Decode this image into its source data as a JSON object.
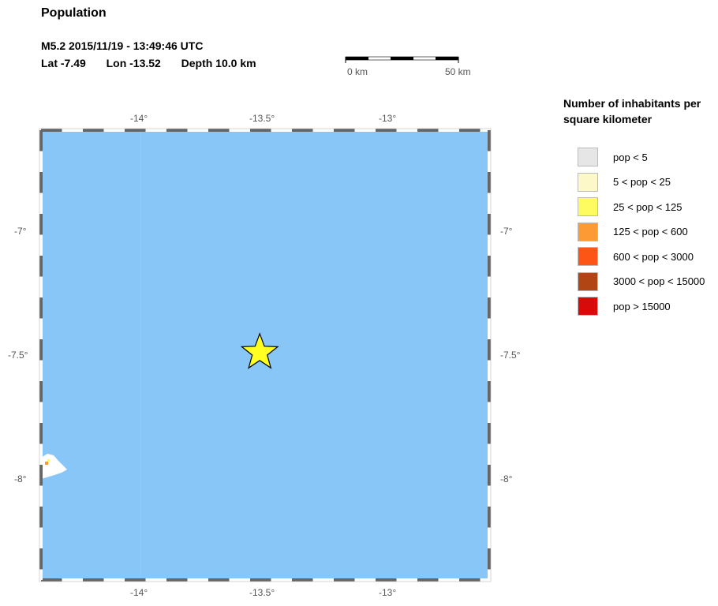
{
  "title": "Population",
  "event": {
    "line1": "M5.2  2015/11/19 - 13:49:46 UTC",
    "lat_label": "Lat -7.49",
    "lon_label": "Lon -13.52",
    "depth_label": "Depth  10.0 km"
  },
  "scale_bar": {
    "start_label": "0 km",
    "end_label": "50 km"
  },
  "map": {
    "lon_ticks": [
      "-14°",
      "-13.5°",
      "-13°"
    ],
    "lat_ticks": [
      "-7°",
      "-7.5°",
      "-8°"
    ],
    "water_color": "#87c6f7",
    "epicenter": {
      "lat": -7.49,
      "lon": -13.52,
      "marker": "star-icon",
      "color": "#ffff22"
    }
  },
  "legend": {
    "title": "Number of inhabitants per square kilometer",
    "items": [
      {
        "label": "pop < 5",
        "color": "#e6e6e6"
      },
      {
        "label": "5 < pop < 25",
        "color": "#fdf8c8"
      },
      {
        "label": "25 < pop < 125",
        "color": "#fdfb60"
      },
      {
        "label": "125 < pop < 600",
        "color": "#fd9a33"
      },
      {
        "label": "600 < pop < 3000",
        "color": "#fd5516"
      },
      {
        "label": "3000 < pop < 15000",
        "color": "#b24514"
      },
      {
        "label": "pop > 15000",
        "color": "#d90a0a"
      }
    ]
  }
}
